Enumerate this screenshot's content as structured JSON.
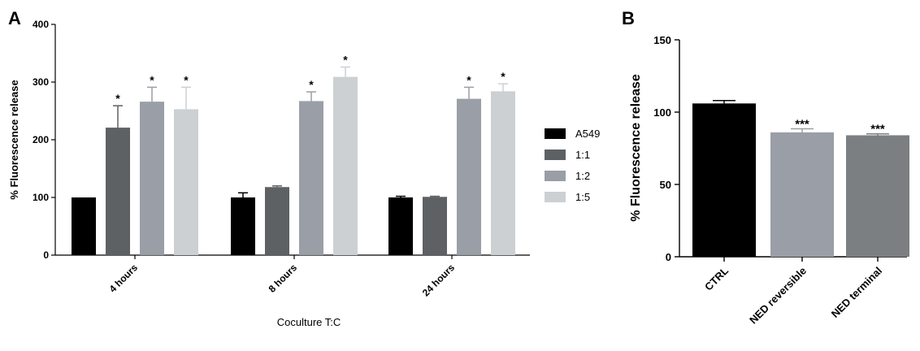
{
  "chart_data": [
    {
      "panel": "A",
      "type": "bar",
      "title": "",
      "ylabel": "% Fluorescence release",
      "xlabel": "Coculture T:C",
      "ylim": [
        0,
        400
      ],
      "yticks": [
        0,
        100,
        200,
        300,
        400
      ],
      "categories": [
        "4 hours",
        "8 hours",
        "24 hours"
      ],
      "legend_position": "right",
      "series": [
        {
          "name": "A549",
          "color": "#000000",
          "values": [
            100,
            100,
            100
          ],
          "errors": [
            0,
            8,
            2
          ],
          "sig": [
            "",
            "",
            ""
          ]
        },
        {
          "name": "1:1",
          "color": "#5e6164",
          "values": [
            221,
            118,
            101
          ],
          "errors": [
            38,
            2,
            1
          ],
          "sig": [
            "*",
            "",
            ""
          ]
        },
        {
          "name": "1:2",
          "color": "#9a9ea6",
          "values": [
            266,
            267,
            271
          ],
          "errors": [
            25,
            16,
            20
          ],
          "sig": [
            "*",
            "*",
            "*"
          ]
        },
        {
          "name": "1:5",
          "color": "#cdd0d2",
          "values": [
            253,
            309,
            284
          ],
          "errors": [
            38,
            17,
            13
          ],
          "sig": [
            "*",
            "*",
            "*"
          ]
        }
      ]
    },
    {
      "panel": "B",
      "type": "bar",
      "title": "",
      "ylabel": "% Fluorescence release",
      "xlabel": "",
      "ylim": [
        0,
        150
      ],
      "yticks": [
        0,
        50,
        100,
        150
      ],
      "categories": [
        "CTRL",
        "NED reversible",
        "NED terminal"
      ],
      "colors": [
        "#000000",
        "#9a9ea6",
        "#7c7f82"
      ],
      "values": [
        106,
        86,
        84
      ],
      "errors": [
        2,
        2.5,
        1
      ],
      "sig": [
        "",
        "***",
        "***"
      ]
    }
  ]
}
